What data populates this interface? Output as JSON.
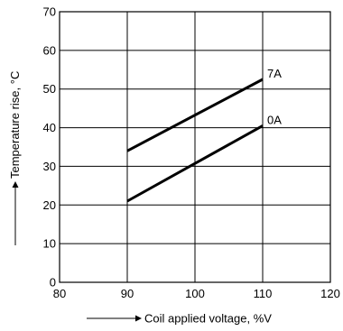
{
  "chart_data": {
    "type": "line",
    "xlabel": "Coil applied voltage, %V",
    "ylabel": "Temperature rise, °C",
    "xlim": [
      80,
      120
    ],
    "ylim": [
      0,
      70
    ],
    "x_ticks": [
      80,
      90,
      100,
      110,
      120
    ],
    "y_ticks": [
      0,
      10,
      20,
      30,
      40,
      50,
      60,
      70
    ],
    "grid": true,
    "series": [
      {
        "name": "7A",
        "x": [
          90,
          110
        ],
        "y": [
          34,
          52.5
        ]
      },
      {
        "name": "0A",
        "x": [
          90,
          110
        ],
        "y": [
          21,
          40.5
        ]
      }
    ]
  }
}
